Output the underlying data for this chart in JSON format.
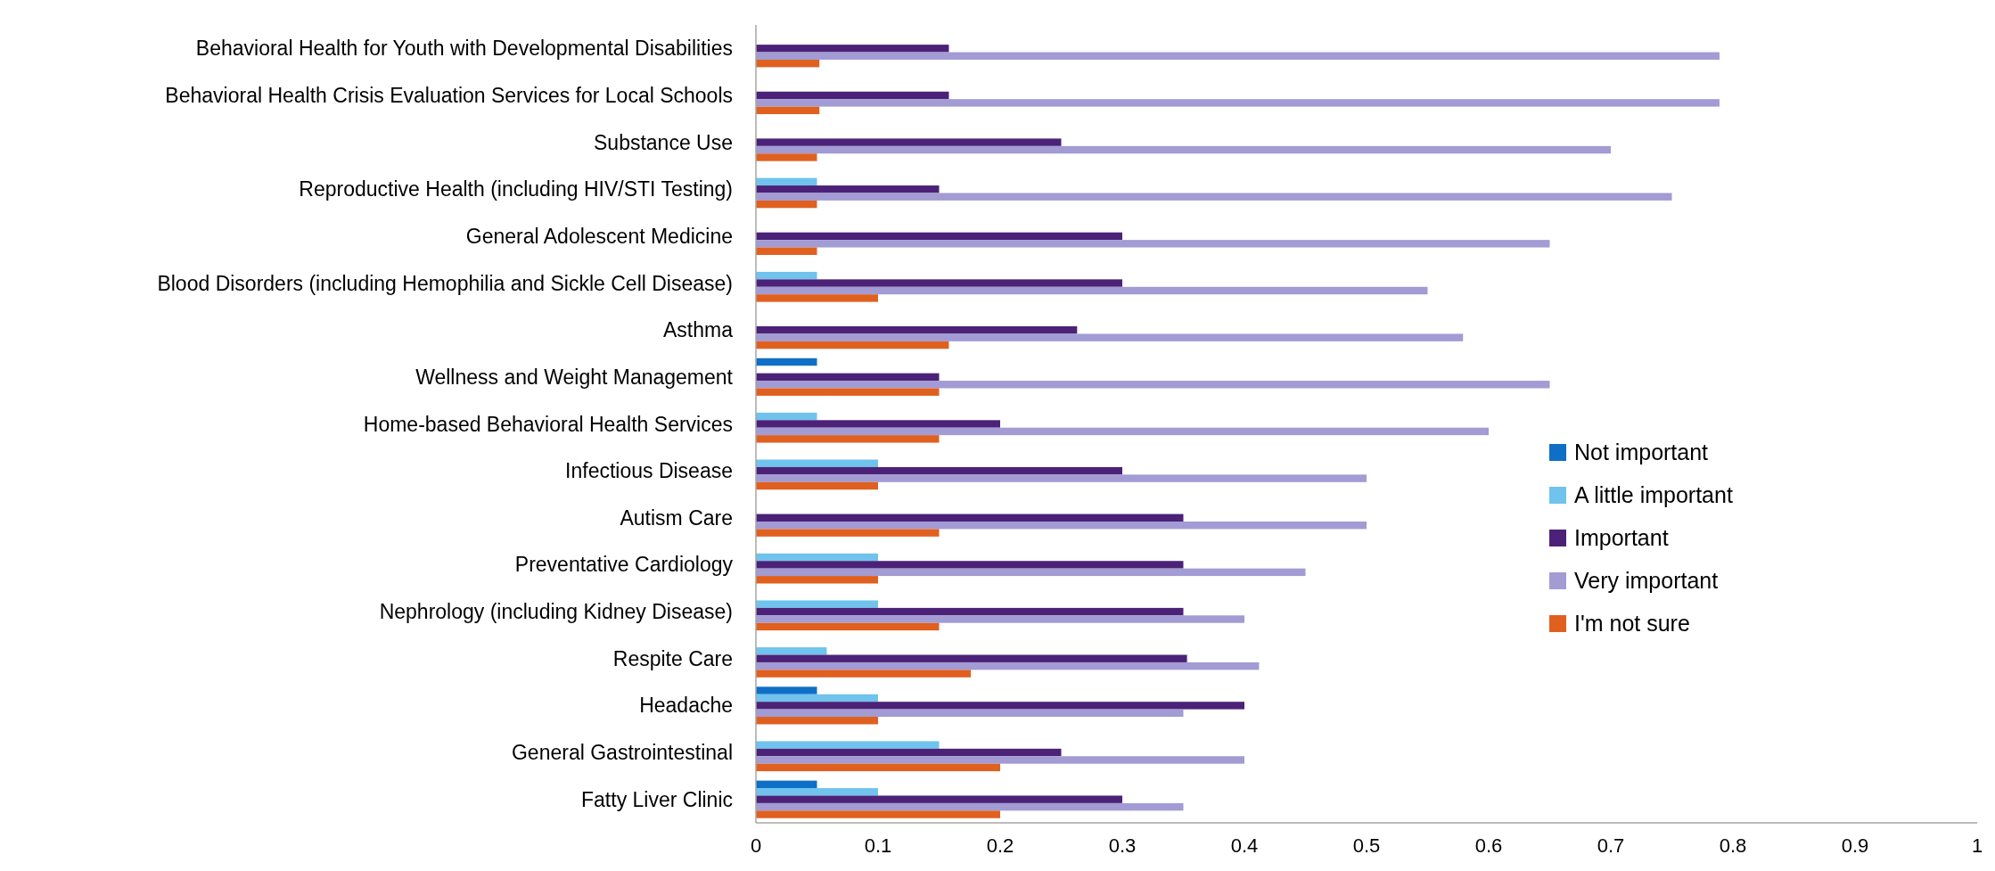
{
  "chart_data": {
    "type": "bar",
    "orientation": "horizontal",
    "categories": [
      "Behavioral Health for Youth with Developmental Disabilities",
      "Behavioral Health Crisis Evaluation Services for Local Schools",
      "Substance Use",
      "Reproductive Health (including HIV/STI Testing)",
      "General Adolescent Medicine",
      "Blood Disorders (including Hemophilia and Sickle Cell Disease)",
      "Asthma",
      "Wellness and Weight Management",
      "Home-based Behavioral Health Services",
      "Infectious Disease",
      "Autism Care",
      "Preventative Cardiology",
      "Nephrology (including Kidney Disease)",
      "Respite Care",
      "Headache",
      "General Gastrointestinal",
      "Fatty Liver Clinic"
    ],
    "series": [
      {
        "name": "Not important",
        "color": "#0f6fc6",
        "values": [
          0,
          0,
          0,
          0,
          0,
          0,
          0,
          0.05,
          0,
          0,
          0,
          0,
          0,
          0,
          0.05,
          0,
          0.05
        ]
      },
      {
        "name": "A little important",
        "color": "#6fc3ed",
        "values": [
          0,
          0,
          0,
          0.05,
          0,
          0.05,
          0,
          0,
          0.05,
          0.1,
          0,
          0.1,
          0.1,
          0.058,
          0.1,
          0.15,
          0.1
        ]
      },
      {
        "name": "Important",
        "color": "#4b2277",
        "values": [
          0.158,
          0.158,
          0.25,
          0.15,
          0.3,
          0.3,
          0.263,
          0.15,
          0.2,
          0.3,
          0.35,
          0.35,
          0.35,
          0.353,
          0.4,
          0.25,
          0.3
        ]
      },
      {
        "name": "Very important",
        "color": "#a29bd4",
        "values": [
          0.789,
          0.789,
          0.7,
          0.75,
          0.65,
          0.55,
          0.579,
          0.65,
          0.6,
          0.5,
          0.5,
          0.45,
          0.4,
          0.412,
          0.35,
          0.4,
          0.35
        ]
      },
      {
        "name": "I'm not sure",
        "color": "#e06020",
        "values": [
          0.052,
          0.052,
          0.05,
          0.05,
          0.05,
          0.1,
          0.158,
          0.15,
          0.15,
          0.1,
          0.15,
          0.1,
          0.15,
          0.176,
          0.1,
          0.2,
          0.2
        ]
      }
    ],
    "xlim": [
      0,
      1
    ],
    "xticks": [
      0,
      0.1,
      0.2,
      0.3,
      0.4,
      0.5,
      0.6,
      0.7,
      0.8,
      0.9,
      1
    ],
    "grid": false,
    "legend": "right"
  }
}
